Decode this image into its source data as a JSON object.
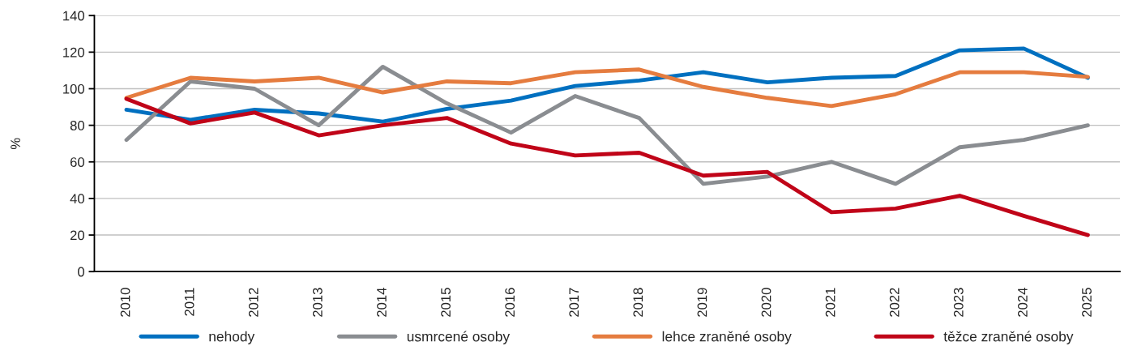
{
  "chart_data": {
    "type": "line",
    "ylabel": "%",
    "categories": [
      "2010",
      "2011",
      "2012",
      "2013",
      "2014",
      "2015",
      "2016",
      "2017",
      "2018",
      "2019",
      "2020",
      "2021",
      "2022",
      "2023",
      "2024",
      "2025"
    ],
    "series": [
      {
        "name": "nehody",
        "color": "#0070c0",
        "values": [
          88.5,
          83,
          88.5,
          86.5,
          82,
          89,
          93.5,
          101.5,
          104.5,
          109,
          103.5,
          106,
          107,
          121,
          122,
          106
        ]
      },
      {
        "name": "usmrcené osoby",
        "color": "#8a8d91",
        "values": [
          72,
          104,
          100,
          80,
          112,
          92,
          76,
          96,
          84,
          48,
          52,
          60,
          48,
          68,
          72,
          80
        ]
      },
      {
        "name": "lehce zraněné osoby",
        "color": "#e57c3f",
        "values": [
          95,
          106,
          104,
          106,
          98,
          104,
          103,
          109,
          110.5,
          101,
          95,
          90.5,
          97,
          109,
          109,
          106.5
        ]
      },
      {
        "name": "těžce zraněné osoby",
        "color": "#c00418",
        "values": [
          94.5,
          81,
          87,
          74.5,
          80,
          84,
          70,
          63.5,
          65,
          52.5,
          54.5,
          32.5,
          34.5,
          41.5,
          30.5,
          20
        ]
      }
    ],
    "ylim": [
      0,
      140
    ],
    "yticks": [
      0,
      20,
      40,
      60,
      80,
      100,
      120,
      140
    ],
    "grid": "y",
    "legend": "bottom",
    "marker": "none",
    "line_style": "solid"
  }
}
